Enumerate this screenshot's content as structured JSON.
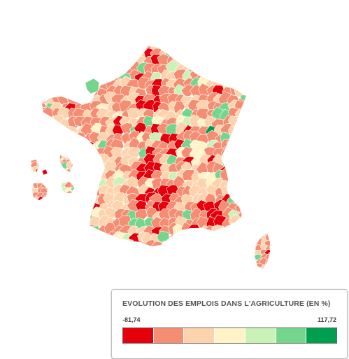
{
  "map": {
    "legend": {
      "title": "EVOLUTION DES EMPLOIS DANS L'AGRICULTURE (EN %)",
      "min_label": "-81,74",
      "max_label": "117,72",
      "min_value": -81.74,
      "max_value": 117.72,
      "colors": [
        "#e5000b",
        "#f58d73",
        "#fdd3ad",
        "#fff3c7",
        "#caf2b6",
        "#74d68d",
        "#009e4f"
      ]
    }
  }
}
